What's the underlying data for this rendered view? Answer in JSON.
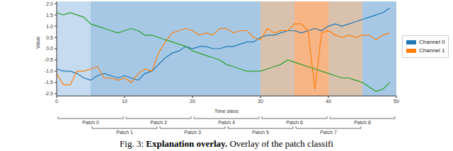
{
  "chart_data": {
    "type": "line",
    "x_label": "Time steps",
    "y_label": "Value",
    "x": [
      0,
      1,
      2,
      3,
      4,
      5,
      6,
      7,
      8,
      9,
      10,
      11,
      12,
      13,
      14,
      15,
      16,
      17,
      18,
      19,
      20,
      21,
      22,
      23,
      24,
      25,
      26,
      27,
      28,
      29,
      30,
      31,
      32,
      33,
      34,
      35,
      36,
      37,
      38,
      39,
      40,
      41,
      42,
      43,
      44,
      45,
      46,
      47,
      48,
      49
    ],
    "series": [
      {
        "name": "Channel 0",
        "color": "#1f77b4",
        "values": [
          -0.9,
          -1.0,
          -1.0,
          -1.1,
          -1.3,
          -1.4,
          -1.2,
          -1.1,
          -1.2,
          -1.3,
          -1.2,
          -1.3,
          -1.4,
          -1.1,
          -1.0,
          -0.7,
          -0.4,
          -0.2,
          -0.1,
          0.1,
          0.0,
          0.1,
          0.1,
          0.0,
          0.0,
          0.1,
          0.1,
          0.2,
          0.3,
          0.3,
          0.5,
          0.6,
          0.6,
          0.7,
          0.8,
          0.8,
          0.7,
          0.8,
          0.9,
          0.8,
          1.0,
          1.1,
          1.0,
          1.1,
          1.2,
          1.3,
          1.4,
          1.5,
          1.6,
          1.8
        ]
      },
      {
        "name": "Channel 1",
        "color": "#ff7f0e",
        "values": [
          -1.1,
          -1.6,
          -1.6,
          -1.0,
          -1.0,
          -0.9,
          -0.8,
          -1.3,
          -1.3,
          -1.4,
          -1.3,
          -1.5,
          -1.1,
          -0.9,
          -1.0,
          -0.2,
          0.3,
          0.7,
          0.8,
          0.9,
          0.8,
          0.6,
          0.7,
          0.6,
          0.9,
          0.9,
          0.7,
          0.8,
          0.8,
          0.5,
          0.4,
          0.9,
          0.7,
          0.8,
          0.8,
          1.1,
          1.1,
          0.8,
          -1.8,
          0.7,
          0.8,
          0.6,
          0.5,
          0.6,
          0.5,
          0.6,
          0.6,
          0.4,
          0.6,
          0.7
        ]
      },
      {
        "color": "#2ca02c",
        "values": [
          1.6,
          1.5,
          1.6,
          1.5,
          1.4,
          1.1,
          1.0,
          0.9,
          0.8,
          0.7,
          0.8,
          0.9,
          0.8,
          0.6,
          0.6,
          0.5,
          0.4,
          0.3,
          0.2,
          0.1,
          -0.1,
          -0.2,
          -0.3,
          -0.4,
          -0.5,
          -0.7,
          -0.8,
          -0.9,
          -1.0,
          -1.0,
          -1.0,
          -0.9,
          -0.8,
          -0.7,
          -0.5,
          -0.6,
          -0.7,
          -0.8,
          -0.9,
          -1.0,
          -1.1,
          -1.2,
          -1.3,
          -1.3,
          -1.4,
          -1.5,
          -1.7,
          -1.9,
          -1.8,
          -1.5
        ]
      }
    ],
    "xlim": [
      0,
      50
    ],
    "xticks": [
      0,
      10,
      20,
      30,
      40,
      50
    ],
    "ylim": [
      -2.1,
      2.1
    ],
    "yticks": [
      {
        "value": -2.0,
        "label": "-2.0"
      },
      {
        "value": -1.5,
        "label": "-1.5"
      },
      {
        "value": -1.0,
        "label": "-1.0"
      },
      {
        "value": -0.5,
        "label": "-0.5"
      },
      {
        "value": 0,
        "label": "0.0"
      },
      {
        "value": 0.5,
        "label": "0.5"
      },
      {
        "value": 1.0,
        "label": "1.0"
      },
      {
        "value": 1.5,
        "label": "1.5"
      },
      {
        "value": 2.0,
        "label": "2.0"
      }
    ],
    "legend": "right",
    "regions": [
      {
        "start": 0,
        "end": 5,
        "color": "#c6dbef"
      },
      {
        "start": 5,
        "end": 30,
        "color": "#a6c8e4"
      },
      {
        "start": 30,
        "end": 35,
        "color": "#d8c2ae"
      },
      {
        "start": 35,
        "end": 40,
        "color": "#f7b585"
      },
      {
        "start": 40,
        "end": 45,
        "color": "#d8c2ae"
      },
      {
        "start": 45,
        "end": 50,
        "color": "#a6c8e4"
      }
    ],
    "patches": [
      {
        "label": "Patch 0",
        "start": 0,
        "end": 10
      },
      {
        "label": "Patch 1",
        "start": 5,
        "end": 15
      },
      {
        "label": "Patch 2",
        "start": 10,
        "end": 20
      },
      {
        "label": "Patch 3",
        "start": 15,
        "end": 25
      },
      {
        "label": "Patch 4",
        "start": 20,
        "end": 30
      },
      {
        "label": "Patch 5",
        "start": 25,
        "end": 35
      },
      {
        "label": "Patch 6",
        "start": 30,
        "end": 40
      },
      {
        "label": "Patch 7",
        "start": 35,
        "end": 45
      },
      {
        "label": "Patch 8",
        "start": 40,
        "end": 50
      }
    ],
    "caption": {
      "prefix": "Fig. 3:",
      "bold": "Explanation overlay.",
      "text": "Overlay of the patch classifi"
    }
  }
}
